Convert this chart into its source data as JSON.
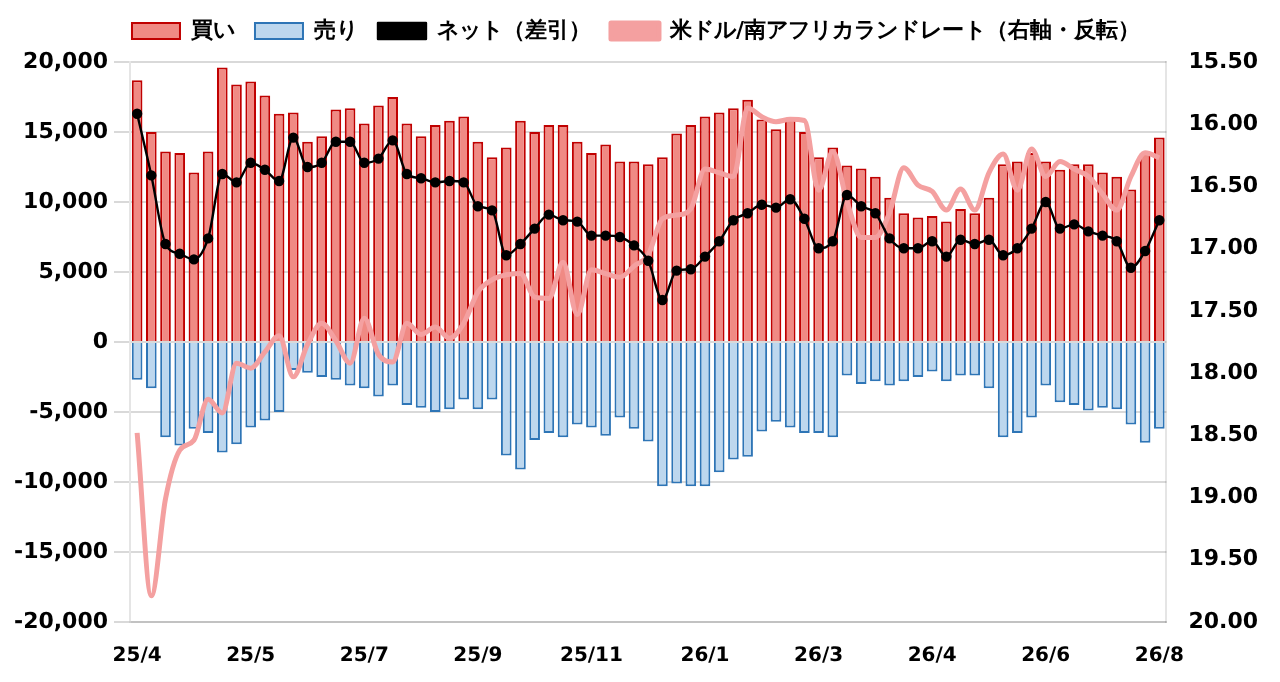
{
  "chart_data": {
    "type": "bar",
    "stacked": true,
    "legend": "top",
    "grid": "y",
    "categories": [
      "25/4",
      null,
      null,
      null,
      null,
      null,
      null,
      null,
      "25/5",
      null,
      null,
      null,
      null,
      null,
      null,
      null,
      "25/7",
      null,
      null,
      null,
      null,
      null,
      null,
      null,
      "25/9",
      null,
      null,
      null,
      null,
      null,
      null,
      null,
      "25/11",
      null,
      null,
      null,
      null,
      null,
      null,
      null,
      "26/1",
      null,
      null,
      null,
      null,
      null,
      null,
      null,
      "26/3",
      null,
      null,
      null,
      null,
      null,
      null,
      null,
      "26/4",
      null,
      null,
      null,
      null,
      null,
      null,
      null,
      "26/6",
      null,
      null,
      null,
      null,
      null,
      null,
      null,
      "26/8"
    ],
    "series": [
      {
        "name": "買い",
        "color": "#f08a84",
        "values": [
          18700,
          15000,
          13600,
          13500,
          12100,
          13600,
          19600,
          18400,
          18600,
          17600,
          16300,
          16400,
          14300,
          14700,
          16600,
          16700,
          15600,
          16900,
          17500,
          15600,
          14700,
          15500,
          15800,
          16100,
          14300,
          13200,
          13900,
          15800,
          15000,
          15500,
          15500,
          14300,
          13500,
          14100,
          12900,
          12900,
          12700,
          13200,
          14900,
          15500,
          16100,
          16400,
          16700,
          17300,
          15900,
          15200,
          15900,
          15000,
          13200,
          13900,
          12600,
          12400,
          11800,
          10300,
          9200,
          8900,
          9000,
          8600,
          9500,
          9200,
          10300,
          12700,
          12900,
          13500,
          12900,
          12300,
          12700,
          12700,
          12100,
          11800,
          10900,
          13500,
          14600
        ]
      },
      {
        "name": "売り",
        "color": "#bdd7ee",
        "values": [
          -2700,
          -3300,
          -6800,
          -7400,
          -6200,
          -6500,
          -7900,
          -7300,
          -6100,
          -5600,
          -5000,
          -2000,
          -2200,
          -2500,
          -2700,
          -3100,
          -3300,
          -3900,
          -3100,
          -4500,
          -4700,
          -5000,
          -4800,
          -4100,
          -4800,
          -4100,
          -8100,
          -9100,
          -7000,
          -6500,
          -6800,
          -5900,
          -6100,
          -6700,
          -5400,
          -6200,
          -7100,
          -10300,
          -10100,
          -10300,
          -10300,
          -9300,
          -8400,
          -8200,
          -6400,
          -5700,
          -6100,
          -6500,
          -6500,
          -6800,
          -2400,
          -3000,
          -2800,
          -3100,
          -2800,
          -2500,
          -2100,
          -2800,
          -2400,
          -2400,
          -3300,
          -6800,
          -6500,
          -5400,
          -3100,
          -4300,
          -4500,
          -4900,
          -4700,
          -4800,
          -5900,
          -7200,
          -6200
        ]
      },
      {
        "name": "ネット（差引）",
        "type": "line",
        "color": "#000000",
        "marker": "circle",
        "values": [
          16300,
          11900,
          7000,
          6300,
          5900,
          7400,
          12000,
          11400,
          12800,
          12300,
          11500,
          14600,
          12500,
          12800,
          14300,
          14300,
          12800,
          13100,
          14400,
          12000,
          11700,
          11400,
          11500,
          11400,
          9700,
          9400,
          6200,
          7000,
          8100,
          9100,
          8700,
          8600,
          7600,
          7600,
          7500,
          6900,
          5800,
          3000,
          5100,
          5200,
          6100,
          7200,
          8700,
          9200,
          9800,
          9600,
          10200,
          8800,
          6700,
          7200,
          10500,
          9700,
          9200,
          7400,
          6700,
          6700,
          7200,
          6100,
          7300,
          7000,
          7300,
          6200,
          6700,
          8100,
          10000,
          8100,
          8400,
          7900,
          7600,
          7200,
          5300,
          6500,
          8700
        ]
      },
      {
        "name": "米ドル/南アフリカランドレート（右軸・反転）",
        "type": "line",
        "axis": "y2",
        "color": "#f4a0a0",
        "marker": "none",
        "values": [
          18.48,
          19.79,
          19.01,
          18.62,
          18.54,
          18.21,
          18.32,
          17.92,
          17.96,
          17.83,
          17.7,
          18.03,
          17.77,
          17.6,
          17.74,
          17.92,
          17.56,
          17.85,
          17.91,
          17.6,
          17.69,
          17.63,
          17.72,
          17.6,
          17.35,
          17.25,
          17.21,
          17.2,
          17.39,
          17.4,
          17.11,
          17.53,
          17.17,
          17.2,
          17.23,
          17.14,
          17.05,
          16.76,
          16.73,
          16.68,
          16.36,
          16.39,
          16.42,
          15.87,
          15.94,
          15.98,
          15.96,
          15.97,
          16.53,
          16.22,
          16.62,
          16.91,
          16.91,
          16.71,
          16.35,
          16.49,
          16.54,
          16.69,
          16.52,
          16.69,
          16.39,
          16.24,
          16.53,
          16.2,
          16.42,
          16.3,
          16.36,
          16.42,
          16.56,
          16.69,
          16.42,
          16.23,
          16.27
        ]
      }
    ],
    "ylim": [
      -20000,
      20000
    ],
    "yticks": [
      {
        "value": -20000,
        "label": "-20,000"
      },
      {
        "value": -15000,
        "label": "-15,000"
      },
      {
        "value": -10000,
        "label": "-10,000"
      },
      {
        "value": -5000,
        "label": "-5,000"
      },
      0,
      {
        "value": 5000,
        "label": "5,000"
      },
      {
        "value": 10000,
        "label": "10,000"
      },
      {
        "value": 15000,
        "label": "15,000"
      },
      {
        "value": 20000,
        "label": "20,000"
      }
    ],
    "y2lim": [
      20.0,
      15.5
    ],
    "y2ticks": [
      {
        "value": 15.5,
        "label": "15.50"
      },
      {
        "value": 16,
        "label": "16.00"
      },
      {
        "value": 16.5,
        "label": "16.50"
      },
      {
        "value": 17,
        "label": "17.00"
      },
      {
        "value": 17.5,
        "label": "17.50"
      },
      {
        "value": 18,
        "label": "18.00"
      },
      {
        "value": 18.5,
        "label": "18.50"
      },
      {
        "value": 19,
        "label": "19.00"
      },
      {
        "value": 19.5,
        "label": "19.50"
      },
      {
        "value": 20,
        "label": "20.00"
      }
    ]
  }
}
